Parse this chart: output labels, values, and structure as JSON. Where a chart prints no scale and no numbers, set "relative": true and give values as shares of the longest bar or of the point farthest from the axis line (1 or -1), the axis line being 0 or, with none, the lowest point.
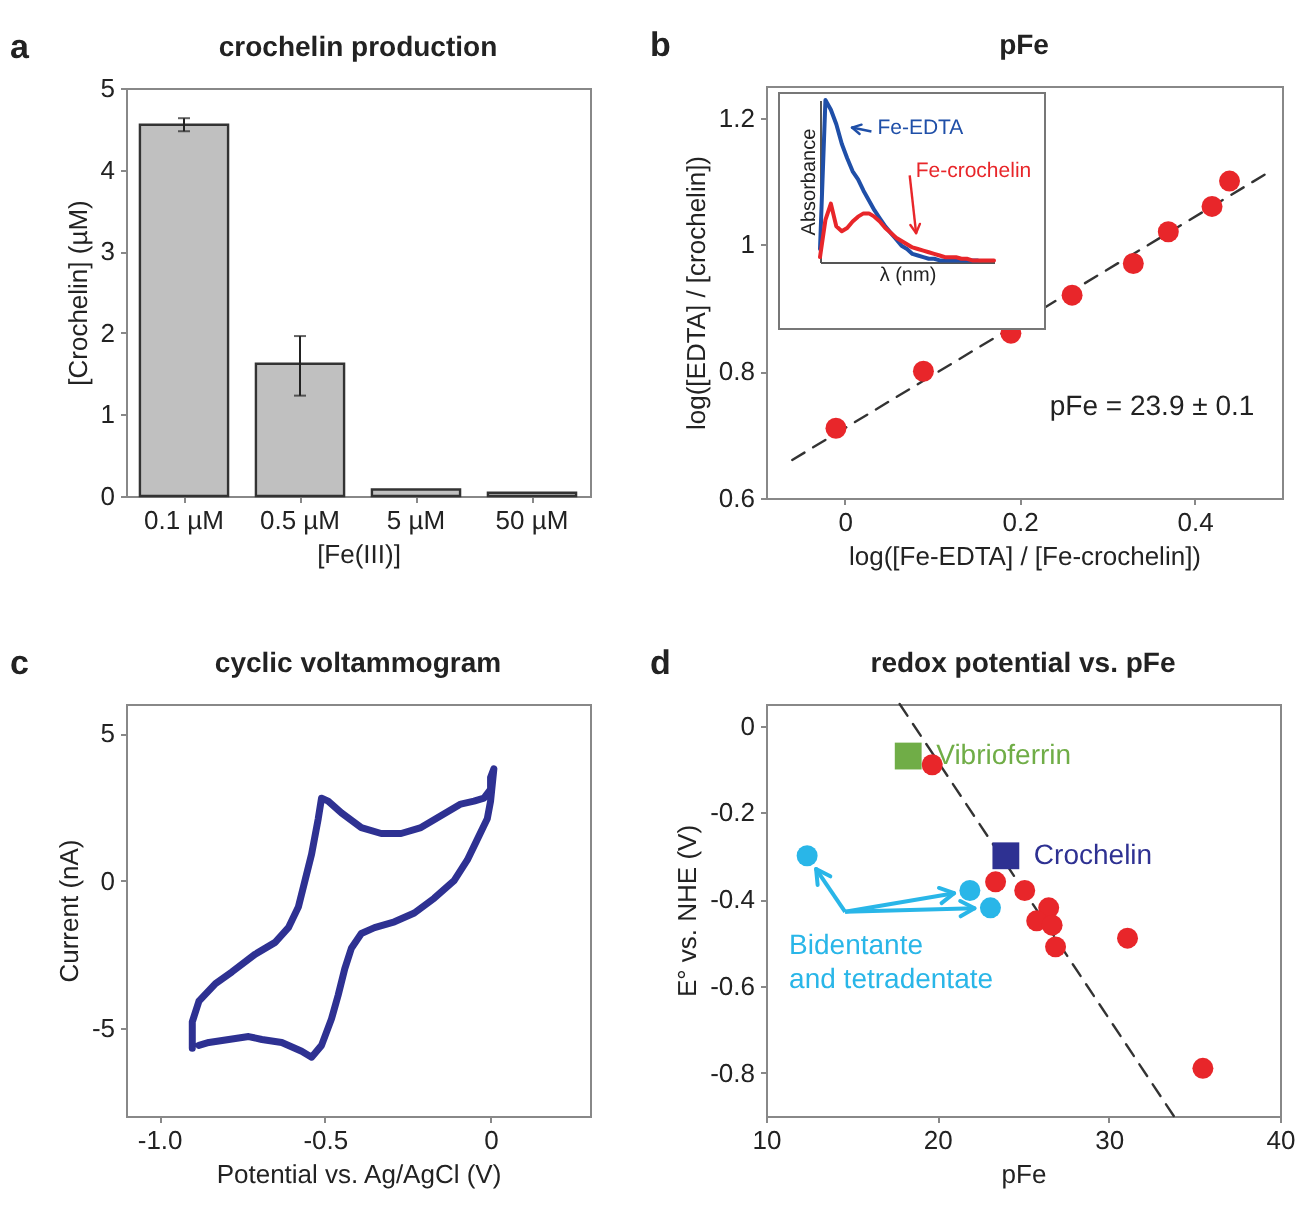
{
  "chart_data": [
    {
      "type": "bar",
      "title": "crochelin production",
      "annotations": [
        "a"
      ],
      "xlabel": "[Fe(III)]",
      "ylabel": "[Crochelin] (µM)",
      "categories": [
        "0.1 µM",
        "0.5 µM",
        "5 µM",
        "50 µM"
      ],
      "values": [
        4.55,
        1.62,
        0.08,
        0.04
      ],
      "errors": [
        0.08,
        [
          1.23,
          1.96
        ],
        null,
        null
      ],
      "color": "#c0c0c0",
      "ylim": [
        0,
        5
      ],
      "yticks": [
        0,
        1,
        2,
        3,
        4,
        5
      ]
    },
    {
      "type": "scatter",
      "title": "pFe",
      "annotations": [
        "b",
        "pFe = 23.9 ± 0.1"
      ],
      "xlabel": "log([Fe-EDTA] / [Fe-crochelin])",
      "ylabel": "log([EDTA] / [crochelin])",
      "series": [
        {
          "type": "line",
          "color": "#333333",
          "line_style": "dashed",
          "x": [
            -0.06,
            0.48
          ],
          "values": [
            0.66,
            1.11
          ]
        },
        {
          "color": "#e8262a",
          "marker": "circle",
          "x": [
            -0.01,
            0.09,
            0.19,
            0.26,
            0.33,
            0.37,
            0.42,
            0.44
          ],
          "values": [
            0.71,
            0.8,
            0.86,
            0.92,
            0.97,
            1.02,
            1.06,
            1.1
          ]
        }
      ],
      "xlim": [
        -0.09,
        0.5
      ],
      "ylim": [
        0.6,
        1.25
      ],
      "xticks": [
        0,
        0.2,
        0.4
      ],
      "yticks": [
        0.6,
        0.8,
        1,
        1.2
      ]
    },
    {
      "type": "line",
      "relative": true,
      "xlabel": "λ (nm)",
      "ylabel": "Absorbance",
      "categories": [
        null,
        null,
        null,
        null,
        null,
        null,
        null,
        null,
        null,
        null,
        null,
        null,
        null,
        null,
        null,
        null,
        null,
        null,
        null,
        null,
        null,
        null,
        null,
        null,
        null,
        null,
        null,
        null,
        null,
        null,
        null,
        null,
        null
      ],
      "series": [
        {
          "name": "Fe-EDTA",
          "color": "#1f4fa8",
          "values": [
            0.08,
            1,
            0.94,
            0.85,
            0.73,
            0.64,
            0.56,
            0.51,
            0.44,
            0.38,
            0.32,
            0.27,
            0.22,
            0.18,
            0.14,
            0.1,
            0.08,
            0.05,
            0.04,
            0.03,
            0.02,
            0.02,
            0.01,
            0.01,
            0.01,
            0.01,
            0.01,
            0.01,
            0.01,
            0.01,
            null,
            null,
            null
          ]
        },
        {
          "name": "Fe-crochelin",
          "color": "#e8262a",
          "values": [
            0.03,
            0.26,
            0.36,
            0.22,
            0.19,
            0.21,
            0.25,
            0.28,
            0.3,
            0.3,
            0.28,
            0.25,
            0.21,
            0.18,
            0.15,
            0.13,
            0.11,
            0.09,
            0.08,
            0.07,
            0.06,
            0.05,
            0.04,
            0.03,
            0.03,
            0.03,
            0.02,
            0.02,
            0.01,
            0.01,
            0.01,
            0.01,
            0.01
          ]
        }
      ]
    },
    {
      "type": "line",
      "title": "cyclic voltammogram",
      "annotations": [
        "c"
      ],
      "xlabel": "Potential vs. Ag/AgCl (V)",
      "ylabel": "Current (nA)",
      "series": [
        {
          "color": "#2e3192",
          "x": [
            -0.9,
            -0.9,
            -0.88,
            -0.83,
            -0.78,
            -0.71,
            -0.65,
            -0.61,
            -0.58,
            -0.56,
            -0.54,
            -0.52,
            -0.51,
            -0.49,
            -0.45,
            -0.39,
            -0.33,
            -0.27,
            -0.21,
            -0.15,
            -0.09,
            -0.05,
            -0.02,
            0,
            0,
            0.01,
            0,
            -0.01,
            -0.04,
            -0.07,
            -0.11,
            -0.17,
            -0.23,
            -0.29,
            -0.35,
            -0.39,
            -0.42,
            -0.44,
            -0.46,
            -0.48,
            -0.51,
            -0.54,
            -0.57,
            -0.63,
            -0.69,
            -0.73,
            -0.79,
            -0.85,
            -0.88
          ],
          "values": [
            -5.7,
            -4.8,
            -4.1,
            -3.5,
            -3.1,
            -2.5,
            -2.1,
            -1.6,
            -0.9,
            0,
            0.9,
            2.1,
            2.8,
            2.7,
            2.3,
            1.8,
            1.6,
            1.6,
            1.8,
            2.2,
            2.6,
            2.7,
            2.8,
            3.1,
            3.5,
            3.8,
            2.7,
            2.1,
            1.4,
            0.7,
            0,
            -0.6,
            -1.1,
            -1.4,
            -1.6,
            -1.8,
            -2.3,
            -3,
            -3.9,
            -4.7,
            -5.6,
            -6,
            -5.8,
            -5.5,
            -5.4,
            -5.3,
            -5.4,
            -5.5,
            -5.6
          ]
        }
      ],
      "xlim": [
        -1.1,
        0.3
      ],
      "ylim": [
        -8,
        6
      ],
      "xticks": [
        {
          "value": -1,
          "label": "-1.0"
        },
        -0.5,
        0
      ],
      "yticks": [
        -5,
        0,
        5
      ]
    },
    {
      "type": "scatter",
      "title": "redox potential vs. pFe",
      "annotations": [
        "d"
      ],
      "xlabel": "pFe",
      "ylabel": "E° vs. NHE (V)",
      "series": [
        {
          "type": "line",
          "color": "#333333",
          "line_style": "dashed",
          "x": [
            17.8,
            33.8
          ],
          "values": [
            0.05,
            -0.9
          ]
        },
        {
          "color": "#e8262a",
          "marker": "circle",
          "x": [
            19.7,
            23.4,
            25.1,
            26.5,
            25.8,
            26.7,
            26.9,
            31.1,
            35.5
          ],
          "values": [
            -0.09,
            -0.36,
            -0.38,
            -0.42,
            -0.45,
            -0.46,
            -0.51,
            -0.49,
            -0.79
          ]
        },
        {
          "name": "Bidentante and tetradentate",
          "color": "#29b6e8",
          "marker": "circle",
          "x": [
            12.4,
            21.9,
            23.1
          ],
          "values": [
            -0.3,
            -0.38,
            -0.42
          ]
        },
        {
          "name": "Vibrioferrin",
          "color": "#70ad47",
          "marker": "square",
          "x": [
            18.3
          ],
          "values": [
            -0.07
          ]
        },
        {
          "name": "Crochelin",
          "color": "#2e3192",
          "marker": "square",
          "x": [
            24
          ],
          "values": [
            -0.3
          ]
        }
      ],
      "xlim": [
        10,
        40
      ],
      "ylim": [
        -0.9,
        0.05
      ],
      "xticks": [
        10,
        20,
        30,
        40
      ],
      "yticks": [
        -0.8,
        -0.6,
        -0.4,
        -0.2,
        0
      ]
    }
  ]
}
